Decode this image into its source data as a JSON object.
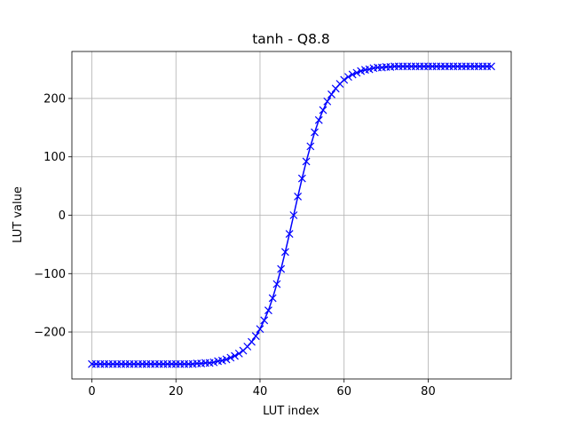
{
  "chart_data": {
    "type": "line",
    "title": "tanh - Q8.8",
    "x_label": "LUT index",
    "y_label": "LUT value",
    "x": [
      0,
      1,
      2,
      3,
      4,
      5,
      6,
      7,
      8,
      9,
      10,
      11,
      12,
      13,
      14,
      15,
      16,
      17,
      18,
      19,
      20,
      21,
      22,
      23,
      24,
      25,
      26,
      27,
      28,
      29,
      30,
      31,
      32,
      33,
      34,
      35,
      36,
      37,
      38,
      39,
      40,
      41,
      42,
      43,
      44,
      45,
      46,
      47,
      48,
      49,
      50,
      51,
      52,
      53,
      54,
      55,
      56,
      57,
      58,
      59,
      60,
      61,
      62,
      63,
      64,
      65,
      66,
      67,
      68,
      69,
      70,
      71,
      72,
      73,
      74,
      75,
      76,
      77,
      78,
      79,
      80,
      81,
      82,
      83,
      84,
      85,
      86,
      87,
      88,
      89,
      90,
      91,
      92,
      93,
      94,
      95
    ],
    "series": [
      {
        "color": "#0000ff",
        "marker": "x",
        "values": [
          -255,
          -255,
          -255,
          -255,
          -255,
          -255,
          -255,
          -255,
          -255,
          -255,
          -255,
          -255,
          -255,
          -255,
          -255,
          -255,
          -255,
          -255,
          -255,
          -255,
          -255,
          -255,
          -255,
          -255,
          -255,
          -254,
          -254,
          -253,
          -253,
          -252,
          -250,
          -249,
          -247,
          -244,
          -241,
          -237,
          -232,
          -225,
          -217,
          -207,
          -195,
          -180,
          -163,
          -142,
          -118,
          -92,
          -63,
          -32,
          0,
          32,
          63,
          92,
          118,
          142,
          163,
          180,
          195,
          207,
          217,
          225,
          232,
          237,
          241,
          244,
          247,
          249,
          250,
          252,
          253,
          253,
          254,
          254,
          255,
          255,
          255,
          255,
          255,
          255,
          255,
          255,
          255,
          255,
          255,
          255,
          255,
          255,
          255,
          255,
          255,
          255,
          255,
          255,
          255,
          255,
          255,
          255
        ]
      }
    ],
    "xlim": [
      -4.75,
      99.75
    ],
    "ylim": [
      -280.5,
      280.5
    ],
    "xticks": [
      0,
      20,
      40,
      60,
      80
    ],
    "yticks": [
      {
        "value": -200,
        "label": "−200"
      },
      {
        "value": -100,
        "label": "−100"
      },
      0,
      100,
      200
    ],
    "grid": true
  }
}
